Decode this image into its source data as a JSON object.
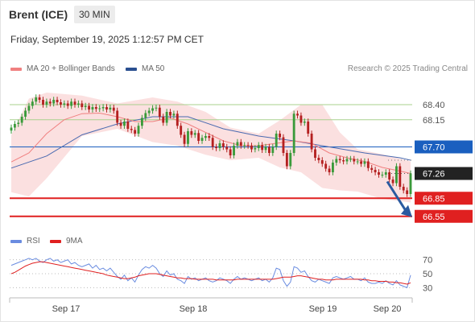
{
  "header": {
    "title": "Brent (ICE)",
    "interval": "30 MIN",
    "timestamp": "Friday, September 19, 2025 1:12:57 PM CET"
  },
  "legend": {
    "ma20_bb": "MA 20 + Bollinger Bands",
    "ma50": "MA 50",
    "credit": "Research © 2025 Trading Central"
  },
  "rsi_legend": {
    "rsi": "RSI",
    "ma": "9MA"
  },
  "colors": {
    "candle_up": "#3a9a3a",
    "candle_down": "#b42020",
    "ma20": "#f08080",
    "ma50": "#4a6ab0",
    "band_fill": "#fbe0e0",
    "green_line": "#a9d08e",
    "blue_line": "#1a5fbf",
    "red_line": "#e02020",
    "rsi": "#6a8ce0",
    "rsi_ma": "#e02020",
    "arrow": "#2a5aa0"
  },
  "chart_data": [
    {
      "type": "candlestick",
      "title": "Brent (ICE)",
      "x_tick_labels": [
        "Sep 17",
        "Sep 18",
        "Sep 19",
        "Sep 20"
      ],
      "ylim": [
        66.4,
        68.8
      ],
      "levels": [
        {
          "value": 68.4,
          "label": "68.40",
          "style": "green"
        },
        {
          "value": 68.15,
          "label": "68.15",
          "style": "green"
        },
        {
          "value": 67.7,
          "label": "67.70",
          "style": "blue"
        },
        {
          "value": 67.26,
          "label": "67.26",
          "style": "last"
        },
        {
          "value": 66.85,
          "label": "66.85",
          "style": "red"
        },
        {
          "value": 66.55,
          "label": "66.55",
          "style": "red"
        }
      ],
      "close": [
        68.02,
        68.08,
        68.1,
        68.2,
        68.3,
        68.38,
        68.45,
        68.52,
        68.48,
        68.4,
        68.45,
        68.42,
        68.48,
        68.44,
        68.4,
        68.42,
        68.38,
        68.45,
        68.4,
        68.42,
        68.36,
        68.38,
        68.32,
        68.36,
        68.33,
        68.34,
        68.36,
        68.32,
        68.35,
        68.3,
        68.1,
        68.05,
        68.12,
        68.0,
        67.98,
        67.92,
        68.05,
        68.18,
        68.26,
        68.3,
        68.34,
        68.35,
        68.2,
        68.1,
        68.28,
        68.22,
        68.25,
        68.05,
        67.9,
        67.75,
        67.96,
        67.9,
        67.93,
        67.8,
        67.85,
        67.88,
        67.85,
        67.7,
        67.68,
        67.76,
        67.7,
        67.66,
        67.56,
        67.72,
        67.78,
        67.72,
        67.73,
        67.72,
        67.66,
        67.68,
        67.73,
        67.65,
        67.7,
        67.6,
        67.7,
        67.92,
        67.86,
        67.6,
        67.38,
        67.6,
        68.25,
        68.22,
        68.1,
        68.12,
        67.92,
        67.66,
        67.52,
        67.48,
        67.42,
        67.34,
        67.28,
        67.44,
        67.5,
        67.48,
        67.46,
        67.5,
        67.5,
        67.46,
        67.46,
        67.42,
        67.46,
        67.35,
        67.32,
        67.28,
        67.24,
        67.24,
        67.28,
        67.16,
        67.1,
        67.38,
        67.04,
        66.98,
        66.92,
        67.26
      ],
      "ma20_points": [
        [
          0,
          67.45
        ],
        [
          5,
          67.6
        ],
        [
          10,
          67.92
        ],
        [
          15,
          68.15
        ],
        [
          20,
          68.25
        ],
        [
          25,
          68.26
        ],
        [
          30,
          68.2
        ],
        [
          35,
          68.12
        ],
        [
          40,
          68.12
        ],
        [
          45,
          68.18
        ],
        [
          50,
          68.08
        ],
        [
          55,
          67.94
        ],
        [
          60,
          67.8
        ],
        [
          65,
          67.72
        ],
        [
          70,
          67.72
        ],
        [
          75,
          67.76
        ],
        [
          80,
          67.8
        ],
        [
          85,
          67.76
        ],
        [
          90,
          67.6
        ],
        [
          95,
          67.52
        ],
        [
          100,
          67.46
        ],
        [
          105,
          67.36
        ],
        [
          110,
          67.3
        ],
        [
          113,
          67.26
        ]
      ],
      "ma50_points": [
        [
          0,
          67.35
        ],
        [
          10,
          67.55
        ],
        [
          20,
          67.9
        ],
        [
          30,
          68.08
        ],
        [
          40,
          68.2
        ],
        [
          50,
          68.2
        ],
        [
          60,
          68.0
        ],
        [
          70,
          67.88
        ],
        [
          80,
          67.8
        ],
        [
          90,
          67.7
        ],
        [
          100,
          67.6
        ],
        [
          110,
          67.52
        ],
        [
          113,
          67.48
        ]
      ],
      "band_upper_points": [
        [
          0,
          67.9
        ],
        [
          5,
          68.5
        ],
        [
          10,
          68.6
        ],
        [
          20,
          68.55
        ],
        [
          30,
          68.42
        ],
        [
          40,
          68.52
        ],
        [
          47,
          68.45
        ],
        [
          55,
          68.28
        ],
        [
          62,
          68.02
        ],
        [
          70,
          67.92
        ],
        [
          76,
          68.14
        ],
        [
          82,
          68.4
        ],
        [
          88,
          68.4
        ],
        [
          93,
          67.94
        ],
        [
          98,
          67.66
        ],
        [
          105,
          67.58
        ],
        [
          113,
          67.46
        ]
      ],
      "band_lower_points": [
        [
          0,
          66.95
        ],
        [
          5,
          66.88
        ],
        [
          10,
          67.18
        ],
        [
          20,
          67.88
        ],
        [
          30,
          68.0
        ],
        [
          40,
          67.78
        ],
        [
          47,
          67.72
        ],
        [
          55,
          67.57
        ],
        [
          62,
          67.48
        ],
        [
          70,
          67.52
        ],
        [
          76,
          67.36
        ],
        [
          82,
          67.28
        ],
        [
          88,
          67.02
        ],
        [
          93,
          66.98
        ],
        [
          98,
          66.96
        ],
        [
          105,
          66.84
        ],
        [
          113,
          66.78
        ]
      ],
      "forecast_arrow": {
        "from": 67.26,
        "to": 66.55
      }
    },
    {
      "type": "line",
      "title": "RSI",
      "series_names": [
        "RSI",
        "9MA"
      ],
      "y_tick_labels": [
        "70",
        "50",
        "30"
      ],
      "ylim": [
        20,
        80
      ],
      "rsi": [
        62,
        64,
        66,
        68,
        70,
        72,
        70,
        72,
        68,
        66,
        70,
        72,
        68,
        70,
        66,
        68,
        70,
        64,
        66,
        62,
        60,
        62,
        64,
        58,
        62,
        56,
        58,
        54,
        58,
        52,
        46,
        42,
        48,
        40,
        44,
        38,
        48,
        56,
        60,
        58,
        62,
        58,
        50,
        46,
        54,
        48,
        50,
        42,
        40,
        36,
        46,
        42,
        44,
        40,
        42,
        44,
        40,
        38,
        40,
        44,
        42,
        40,
        36,
        42,
        46,
        42,
        44,
        42,
        40,
        42,
        44,
        40,
        42,
        38,
        44,
        58,
        56,
        40,
        32,
        38,
        60,
        58,
        52,
        54,
        46,
        40,
        38,
        42,
        40,
        38,
        36,
        44,
        46,
        44,
        42,
        44,
        46,
        42,
        42,
        40,
        44,
        38,
        36,
        36,
        38,
        36,
        40,
        36,
        34,
        40,
        34,
        32,
        30,
        48
      ],
      "ma9": [
        50,
        52,
        55,
        58,
        61,
        63,
        65,
        66,
        67,
        67,
        66,
        65,
        64,
        63,
        62,
        61,
        60,
        59,
        58,
        57,
        56,
        55,
        54,
        53,
        52,
        51,
        50,
        48,
        47,
        46,
        45,
        44,
        43,
        43,
        44,
        45,
        47,
        48,
        49,
        50,
        50,
        50,
        49,
        48,
        47,
        46,
        45,
        44,
        44,
        43,
        43,
        43,
        42,
        42,
        42,
        42,
        42,
        42,
        41,
        41,
        41,
        41,
        41,
        41,
        42,
        42,
        42,
        42,
        42,
        42,
        42,
        42,
        42,
        42,
        42,
        43,
        44,
        45,
        45,
        45,
        46,
        47,
        47,
        46,
        45,
        44,
        43,
        42,
        42,
        41,
        41,
        41,
        42,
        42,
        42,
        42,
        42,
        42,
        42,
        42,
        41,
        41,
        40,
        40,
        39,
        39,
        39,
        38,
        38,
        37,
        37,
        36,
        35,
        37
      ]
    }
  ]
}
